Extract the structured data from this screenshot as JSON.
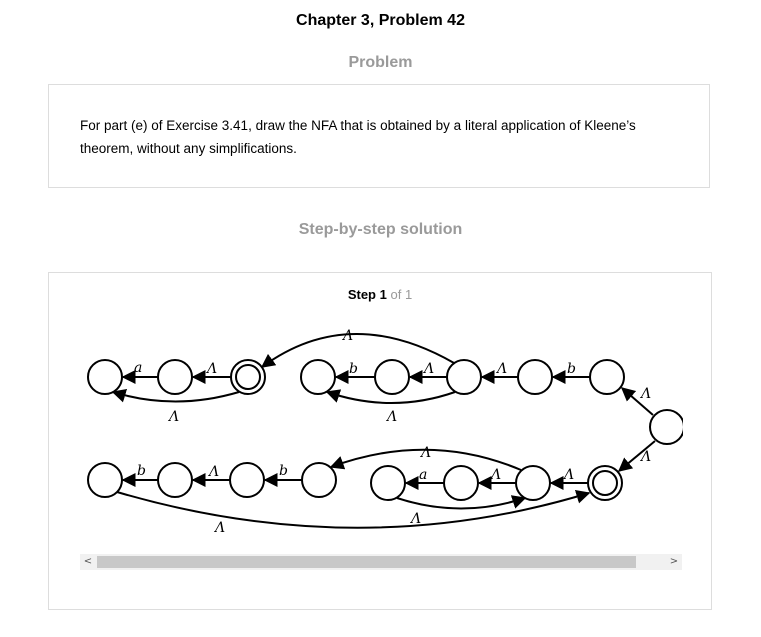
{
  "page": {
    "title": "Chapter 3, Problem 42"
  },
  "problem": {
    "heading": "Problem",
    "text": "For part (e) of Exercise 3.41, draw the NFA that is obtained by a literal application of Kleene’s theorem, without any simplifications."
  },
  "solution": {
    "heading": "Step-by-step solution",
    "step_word": "Step",
    "step_number": "1",
    "step_of": "of 1"
  },
  "diagram": {
    "labels": {
      "a": "a",
      "b": "b",
      "lambda": "Λ"
    },
    "stroke_color": "#000000"
  },
  "scrollbar": {
    "left_arrow": "<",
    "right_arrow": ">"
  }
}
